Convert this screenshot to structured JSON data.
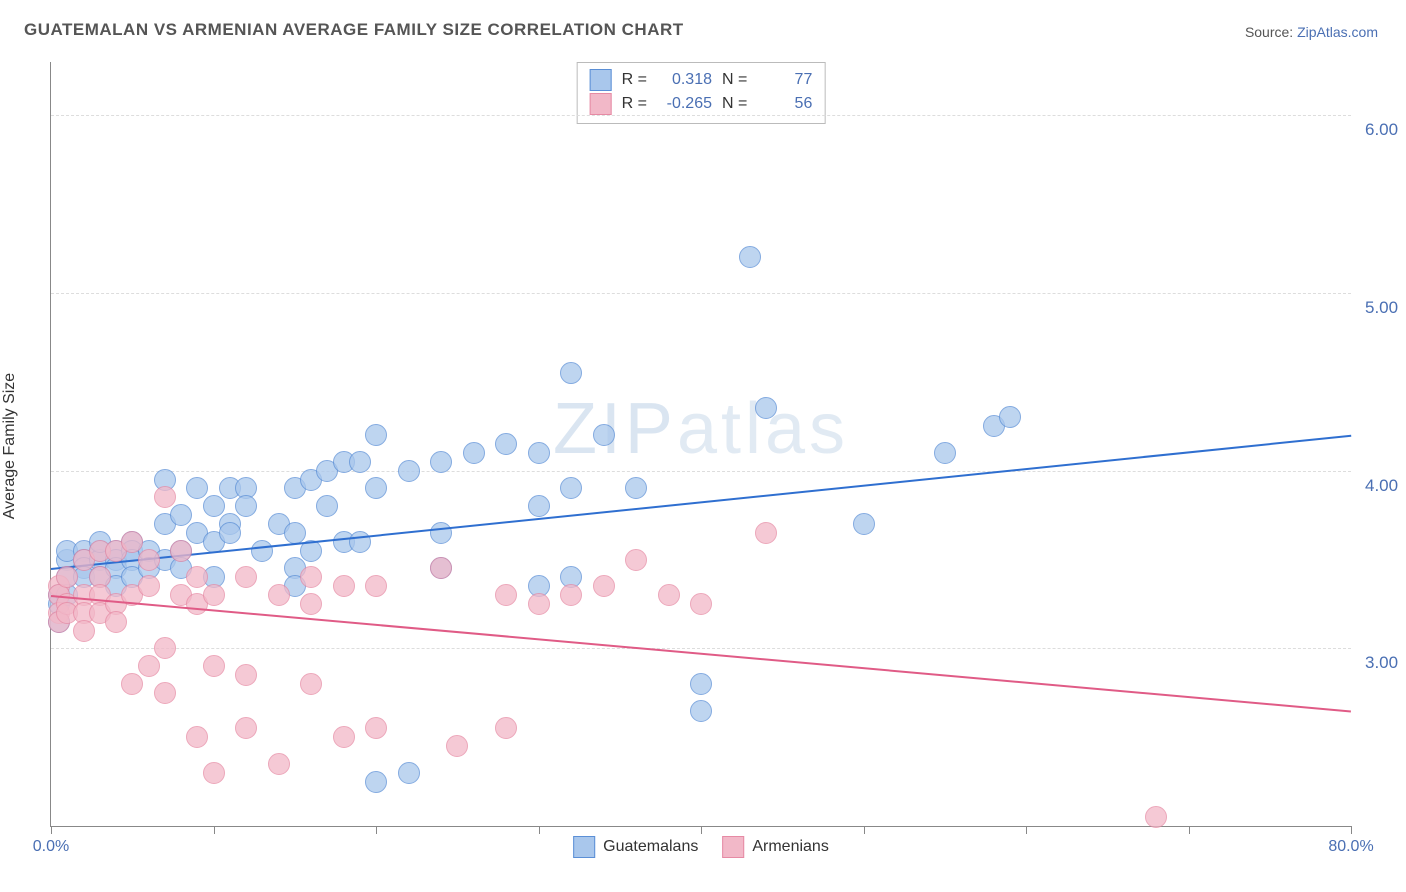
{
  "title": "GUATEMALAN VS ARMENIAN AVERAGE FAMILY SIZE CORRELATION CHART",
  "source_prefix": "Source: ",
  "source_name": "ZipAtlas.com",
  "ylabel": "Average Family Size",
  "watermark": "ZIPatlas",
  "chart": {
    "type": "scatter",
    "background_color": "#ffffff",
    "grid_color": "#dddddd",
    "axis_color": "#888888",
    "tick_label_color": "#4a6fb3",
    "xlim": [
      0,
      80
    ],
    "ylim": [
      2.0,
      6.3
    ],
    "x_tick_positions": [
      0,
      10,
      20,
      30,
      40,
      50,
      60,
      70,
      80
    ],
    "x_tick_labels_shown": {
      "0": "0.0%",
      "80": "80.0%"
    },
    "y_tick_positions": [
      3.0,
      4.0,
      5.0,
      6.0
    ],
    "y_tick_labels": [
      "3.00",
      "4.00",
      "5.00",
      "6.00"
    ],
    "marker_radius": 10,
    "marker_stroke_width": 1.2,
    "marker_fill_opacity": 0.3,
    "trend_line_width": 2,
    "series": [
      {
        "name": "Guatemalans",
        "color_stroke": "#5b8fd6",
        "color_fill": "#a9c7ec",
        "trend_color": "#2f6fd0",
        "R": "0.318",
        "N": "77",
        "trend_start": {
          "x": 0,
          "y": 3.45
        },
        "trend_end": {
          "x": 80,
          "y": 4.2
        },
        "points": [
          {
            "x": 0.5,
            "y": 3.3
          },
          {
            "x": 0.5,
            "y": 3.25
          },
          {
            "x": 0.5,
            "y": 3.15
          },
          {
            "x": 1,
            "y": 3.5
          },
          {
            "x": 1,
            "y": 3.55
          },
          {
            "x": 1,
            "y": 3.4
          },
          {
            "x": 1,
            "y": 3.3
          },
          {
            "x": 2,
            "y": 3.55
          },
          {
            "x": 2,
            "y": 3.5
          },
          {
            "x": 2,
            "y": 3.45
          },
          {
            "x": 2,
            "y": 3.4
          },
          {
            "x": 3,
            "y": 3.55
          },
          {
            "x": 3,
            "y": 3.5
          },
          {
            "x": 3,
            "y": 3.4
          },
          {
            "x": 3,
            "y": 3.6
          },
          {
            "x": 4,
            "y": 3.55
          },
          {
            "x": 4,
            "y": 3.5
          },
          {
            "x": 4,
            "y": 3.45
          },
          {
            "x": 4,
            "y": 3.35
          },
          {
            "x": 5,
            "y": 3.6
          },
          {
            "x": 5,
            "y": 3.55
          },
          {
            "x": 5,
            "y": 3.5
          },
          {
            "x": 5,
            "y": 3.4
          },
          {
            "x": 6,
            "y": 3.55
          },
          {
            "x": 6,
            "y": 3.45
          },
          {
            "x": 7,
            "y": 3.95
          },
          {
            "x": 7,
            "y": 3.7
          },
          {
            "x": 7,
            "y": 3.5
          },
          {
            "x": 8,
            "y": 3.75
          },
          {
            "x": 8,
            "y": 3.55
          },
          {
            "x": 8,
            "y": 3.45
          },
          {
            "x": 9,
            "y": 3.9
          },
          {
            "x": 9,
            "y": 3.65
          },
          {
            "x": 10,
            "y": 3.8
          },
          {
            "x": 10,
            "y": 3.6
          },
          {
            "x": 10,
            "y": 3.4
          },
          {
            "x": 11,
            "y": 3.9
          },
          {
            "x": 11,
            "y": 3.7
          },
          {
            "x": 11,
            "y": 3.65
          },
          {
            "x": 12,
            "y": 3.9
          },
          {
            "x": 12,
            "y": 3.8
          },
          {
            "x": 13,
            "y": 3.55
          },
          {
            "x": 14,
            "y": 3.7
          },
          {
            "x": 15,
            "y": 3.9
          },
          {
            "x": 15,
            "y": 3.65
          },
          {
            "x": 15,
            "y": 3.45
          },
          {
            "x": 15,
            "y": 3.35
          },
          {
            "x": 16,
            "y": 3.95
          },
          {
            "x": 16,
            "y": 3.55
          },
          {
            "x": 17,
            "y": 4.0
          },
          {
            "x": 17,
            "y": 3.8
          },
          {
            "x": 18,
            "y": 4.05
          },
          {
            "x": 18,
            "y": 3.6
          },
          {
            "x": 19,
            "y": 4.05
          },
          {
            "x": 19,
            "y": 3.6
          },
          {
            "x": 20,
            "y": 4.2
          },
          {
            "x": 20,
            "y": 3.9
          },
          {
            "x": 20,
            "y": 2.25
          },
          {
            "x": 22,
            "y": 4.0
          },
          {
            "x": 22,
            "y": 2.3
          },
          {
            "x": 24,
            "y": 4.05
          },
          {
            "x": 24,
            "y": 3.65
          },
          {
            "x": 24,
            "y": 3.45
          },
          {
            "x": 26,
            "y": 4.1
          },
          {
            "x": 28,
            "y": 4.15
          },
          {
            "x": 30,
            "y": 4.1
          },
          {
            "x": 30,
            "y": 3.8
          },
          {
            "x": 30,
            "y": 3.35
          },
          {
            "x": 32,
            "y": 4.55
          },
          {
            "x": 32,
            "y": 3.9
          },
          {
            "x": 32,
            "y": 3.4
          },
          {
            "x": 34,
            "y": 4.2
          },
          {
            "x": 36,
            "y": 3.9
          },
          {
            "x": 40,
            "y": 2.8
          },
          {
            "x": 40,
            "y": 2.65
          },
          {
            "x": 43,
            "y": 5.2
          },
          {
            "x": 44,
            "y": 4.35
          },
          {
            "x": 50,
            "y": 3.7
          },
          {
            "x": 55,
            "y": 4.1
          },
          {
            "x": 58,
            "y": 4.25
          },
          {
            "x": 59,
            "y": 4.3
          }
        ]
      },
      {
        "name": "Armenians",
        "color_stroke": "#e68aa4",
        "color_fill": "#f2b8c8",
        "trend_color": "#e05b86",
        "R": "-0.265",
        "N": "56",
        "trend_start": {
          "x": 0,
          "y": 3.3
        },
        "trend_end": {
          "x": 80,
          "y": 2.65
        },
        "points": [
          {
            "x": 0.5,
            "y": 3.35
          },
          {
            "x": 0.5,
            "y": 3.3
          },
          {
            "x": 0.5,
            "y": 3.2
          },
          {
            "x": 0.5,
            "y": 3.15
          },
          {
            "x": 1,
            "y": 3.4
          },
          {
            "x": 1,
            "y": 3.25
          },
          {
            "x": 1,
            "y": 3.2
          },
          {
            "x": 2,
            "y": 3.5
          },
          {
            "x": 2,
            "y": 3.3
          },
          {
            "x": 2,
            "y": 3.2
          },
          {
            "x": 2,
            "y": 3.1
          },
          {
            "x": 3,
            "y": 3.55
          },
          {
            "x": 3,
            "y": 3.4
          },
          {
            "x": 3,
            "y": 3.3
          },
          {
            "x": 3,
            "y": 3.2
          },
          {
            "x": 4,
            "y": 3.55
          },
          {
            "x": 4,
            "y": 3.25
          },
          {
            "x": 4,
            "y": 3.15
          },
          {
            "x": 5,
            "y": 3.6
          },
          {
            "x": 5,
            "y": 3.3
          },
          {
            "x": 5,
            "y": 2.8
          },
          {
            "x": 6,
            "y": 3.5
          },
          {
            "x": 6,
            "y": 3.35
          },
          {
            "x": 6,
            "y": 2.9
          },
          {
            "x": 7,
            "y": 3.85
          },
          {
            "x": 7,
            "y": 3.0
          },
          {
            "x": 7,
            "y": 2.75
          },
          {
            "x": 8,
            "y": 3.55
          },
          {
            "x": 8,
            "y": 3.3
          },
          {
            "x": 9,
            "y": 3.4
          },
          {
            "x": 9,
            "y": 3.25
          },
          {
            "x": 9,
            "y": 2.5
          },
          {
            "x": 10,
            "y": 3.3
          },
          {
            "x": 10,
            "y": 2.9
          },
          {
            "x": 10,
            "y": 2.3
          },
          {
            "x": 12,
            "y": 3.4
          },
          {
            "x": 12,
            "y": 2.85
          },
          {
            "x": 12,
            "y": 2.55
          },
          {
            "x": 14,
            "y": 3.3
          },
          {
            "x": 14,
            "y": 2.35
          },
          {
            "x": 16,
            "y": 3.4
          },
          {
            "x": 16,
            "y": 3.25
          },
          {
            "x": 16,
            "y": 2.8
          },
          {
            "x": 18,
            "y": 3.35
          },
          {
            "x": 18,
            "y": 2.5
          },
          {
            "x": 20,
            "y": 3.35
          },
          {
            "x": 20,
            "y": 2.55
          },
          {
            "x": 24,
            "y": 3.45
          },
          {
            "x": 25,
            "y": 2.45
          },
          {
            "x": 28,
            "y": 3.3
          },
          {
            "x": 28,
            "y": 2.55
          },
          {
            "x": 30,
            "y": 3.25
          },
          {
            "x": 32,
            "y": 3.3
          },
          {
            "x": 34,
            "y": 3.35
          },
          {
            "x": 36,
            "y": 3.5
          },
          {
            "x": 38,
            "y": 3.3
          },
          {
            "x": 40,
            "y": 3.25
          },
          {
            "x": 44,
            "y": 3.65
          },
          {
            "x": 68,
            "y": 2.05
          }
        ]
      }
    ]
  },
  "stats_box": {
    "rows": [
      {
        "r_label": "R =",
        "r_val": "0.318",
        "n_label": "N =",
        "n_val": "77"
      },
      {
        "r_label": "R =",
        "r_val": "-0.265",
        "n_label": "N =",
        "n_val": "56"
      }
    ]
  },
  "legend": {
    "items": [
      {
        "label": "Guatemalans"
      },
      {
        "label": "Armenians"
      }
    ]
  }
}
